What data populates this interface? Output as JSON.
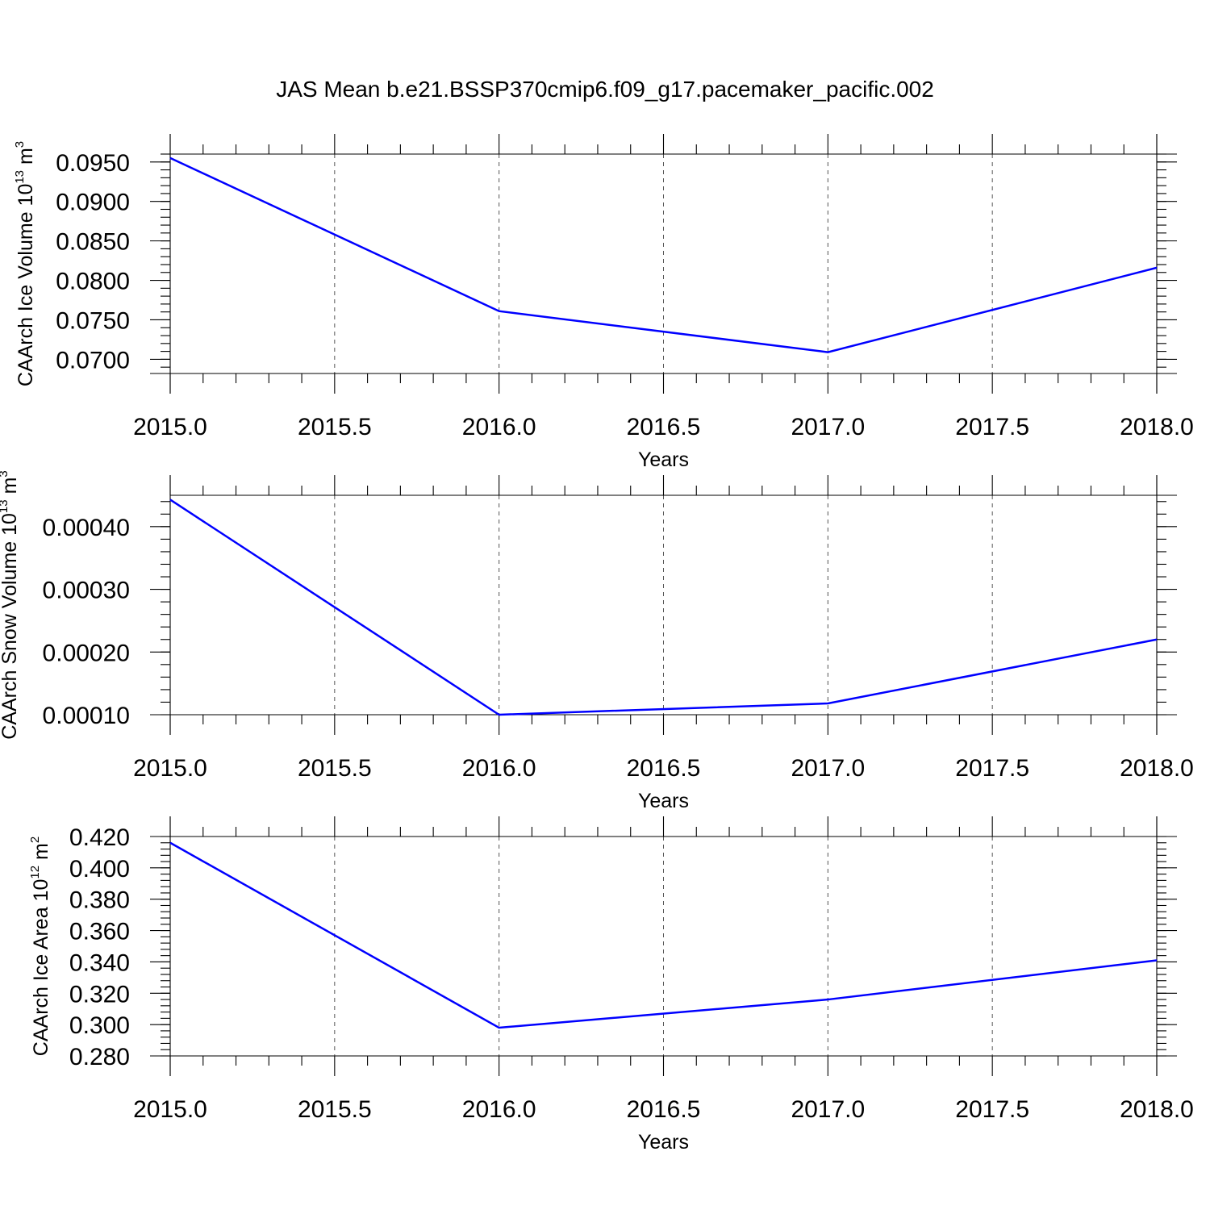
{
  "title": "JAS Mean b.e21.BSSP370cmip6.f09_g17.pacemaker_pacific.002",
  "colors": {
    "line": "#0000ff",
    "grid": "#555555",
    "frame": "#000000"
  },
  "chart_data": [
    {
      "type": "line",
      "x": [
        2015.0,
        2016.0,
        2017.0,
        2018.0
      ],
      "values": [
        0.0955,
        0.0761,
        0.0709,
        0.0816
      ],
      "xlabel": "Years",
      "ylabel": {
        "text": "CAArch Ice Volume 10",
        "sup": "13",
        "unit": " m",
        "unit_sup": "3"
      },
      "xlim": [
        2015.0,
        2018.0
      ],
      "ylim": [
        0.0682,
        0.096
      ],
      "xticks": [
        "2015.0",
        "2015.5",
        "2016.0",
        "2016.5",
        "2017.0",
        "2017.5",
        "2018.0"
      ],
      "yticks": [
        "0.0700",
        "0.0750",
        "0.0800",
        "0.0850",
        "0.0900",
        "0.0950"
      ],
      "ytick_values": [
        0.07,
        0.075,
        0.08,
        0.085,
        0.09,
        0.095
      ],
      "yminor_step": 0.001,
      "grid": "vertical-dashed"
    },
    {
      "type": "line",
      "x": [
        2015.0,
        2016.0,
        2017.0,
        2018.0
      ],
      "values": [
        0.000443,
        0.0001,
        0.000118,
        0.00022
      ],
      "xlabel": "Years",
      "ylabel": {
        "text": "CAArch Snow Volume 10",
        "sup": "13",
        "unit": " m",
        "unit_sup": "3"
      },
      "xlim": [
        2015.0,
        2018.0
      ],
      "ylim": [
        0.0001,
        0.00045
      ],
      "xticks": [
        "2015.0",
        "2015.5",
        "2016.0",
        "2016.5",
        "2017.0",
        "2017.5",
        "2018.0"
      ],
      "yticks": [
        "0.00010",
        "0.00020",
        "0.00030",
        "0.00040"
      ],
      "ytick_values": [
        0.0001,
        0.0002,
        0.0003,
        0.0004
      ],
      "yminor_step": 2e-05,
      "grid": "vertical-dashed"
    },
    {
      "type": "line",
      "x": [
        2015.0,
        2016.0,
        2017.0,
        2018.0
      ],
      "values": [
        0.416,
        0.298,
        0.316,
        0.341
      ],
      "xlabel": "Years",
      "ylabel": {
        "text": "CAArch Ice Area 10",
        "sup": "12",
        "unit": " m",
        "unit_sup": "2"
      },
      "xlim": [
        2015.0,
        2018.0
      ],
      "ylim": [
        0.28,
        0.42
      ],
      "xticks": [
        "2015.0",
        "2015.5",
        "2016.0",
        "2016.5",
        "2017.0",
        "2017.5",
        "2018.0"
      ],
      "yticks": [
        "0.280",
        "0.300",
        "0.320",
        "0.340",
        "0.360",
        "0.380",
        "0.400",
        "0.420"
      ],
      "ytick_values": [
        0.28,
        0.3,
        0.32,
        0.34,
        0.36,
        0.38,
        0.4,
        0.42
      ],
      "yminor_step": 0.004,
      "grid": "vertical-dashed"
    }
  ]
}
